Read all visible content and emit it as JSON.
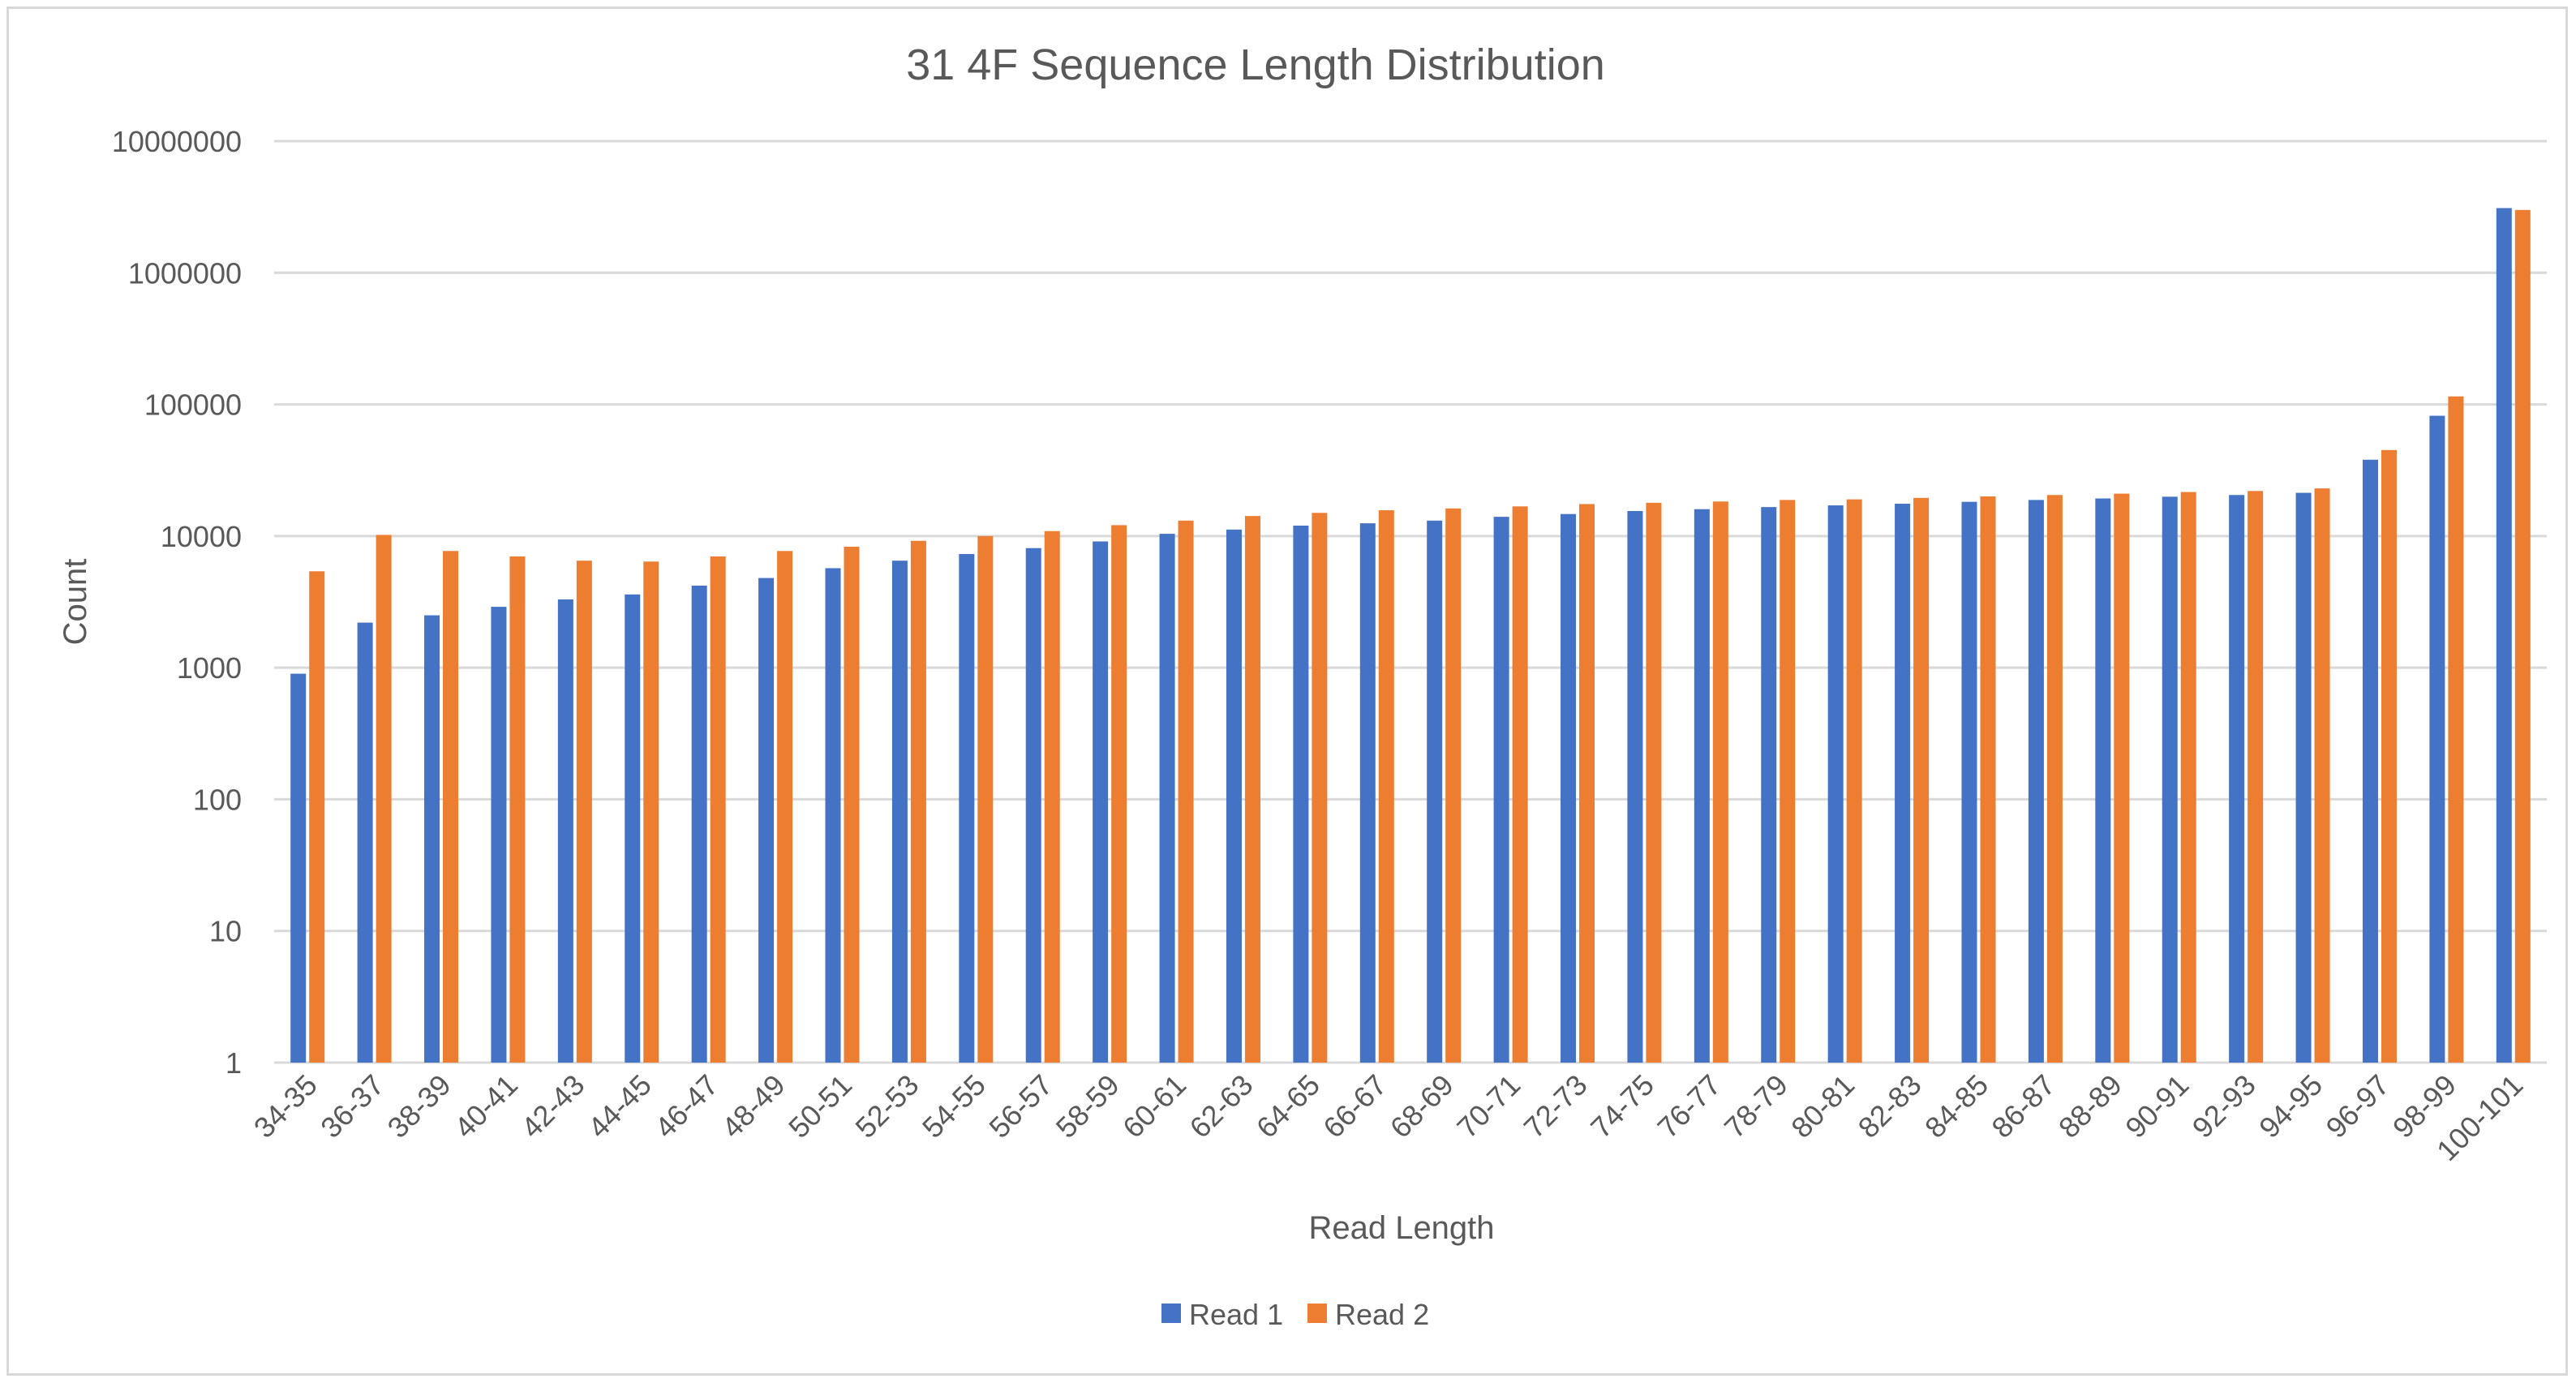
{
  "chart_data": {
    "type": "bar",
    "title": "31 4F Sequence Length Distribution",
    "xlabel": "Read Length",
    "ylabel": "Count",
    "yscale": "log",
    "ylim": [
      1,
      10000000
    ],
    "yticks": [
      "1",
      "10",
      "100",
      "1000",
      "10000",
      "100000",
      "1000000",
      "10000000"
    ],
    "grid": true,
    "legend_position": "bottom",
    "categories": [
      "34-35",
      "36-37",
      "38-39",
      "40-41",
      "42-43",
      "44-45",
      "46-47",
      "48-49",
      "50-51",
      "52-53",
      "54-55",
      "56-57",
      "58-59",
      "60-61",
      "62-63",
      "64-65",
      "66-67",
      "68-69",
      "70-71",
      "72-73",
      "74-75",
      "76-77",
      "78-79",
      "80-81",
      "82-83",
      "84-85",
      "86-87",
      "88-89",
      "90-91",
      "92-93",
      "94-95",
      "96-97",
      "98-99",
      "100-101"
    ],
    "series": [
      {
        "name": "Read 1",
        "color": "#4472C4",
        "values": [
          900,
          2200,
          2500,
          2900,
          3300,
          3600,
          4200,
          4800,
          5700,
          6500,
          7300,
          8100,
          9100,
          10400,
          11200,
          12000,
          12500,
          13100,
          14000,
          14700,
          15500,
          16000,
          16600,
          17100,
          17600,
          18200,
          18800,
          19300,
          19900,
          20500,
          21300,
          38000,
          82000,
          3100000
        ]
      },
      {
        "name": "Read 2",
        "color": "#ED7D31",
        "values": [
          5400,
          10200,
          7700,
          7000,
          6500,
          6400,
          7000,
          7700,
          8300,
          9200,
          10000,
          10900,
          12100,
          13100,
          14200,
          15000,
          15700,
          16200,
          16800,
          17500,
          17900,
          18300,
          18800,
          19000,
          19500,
          20000,
          20500,
          21000,
          21600,
          22000,
          23000,
          45000,
          115000,
          3000000
        ]
      }
    ]
  }
}
